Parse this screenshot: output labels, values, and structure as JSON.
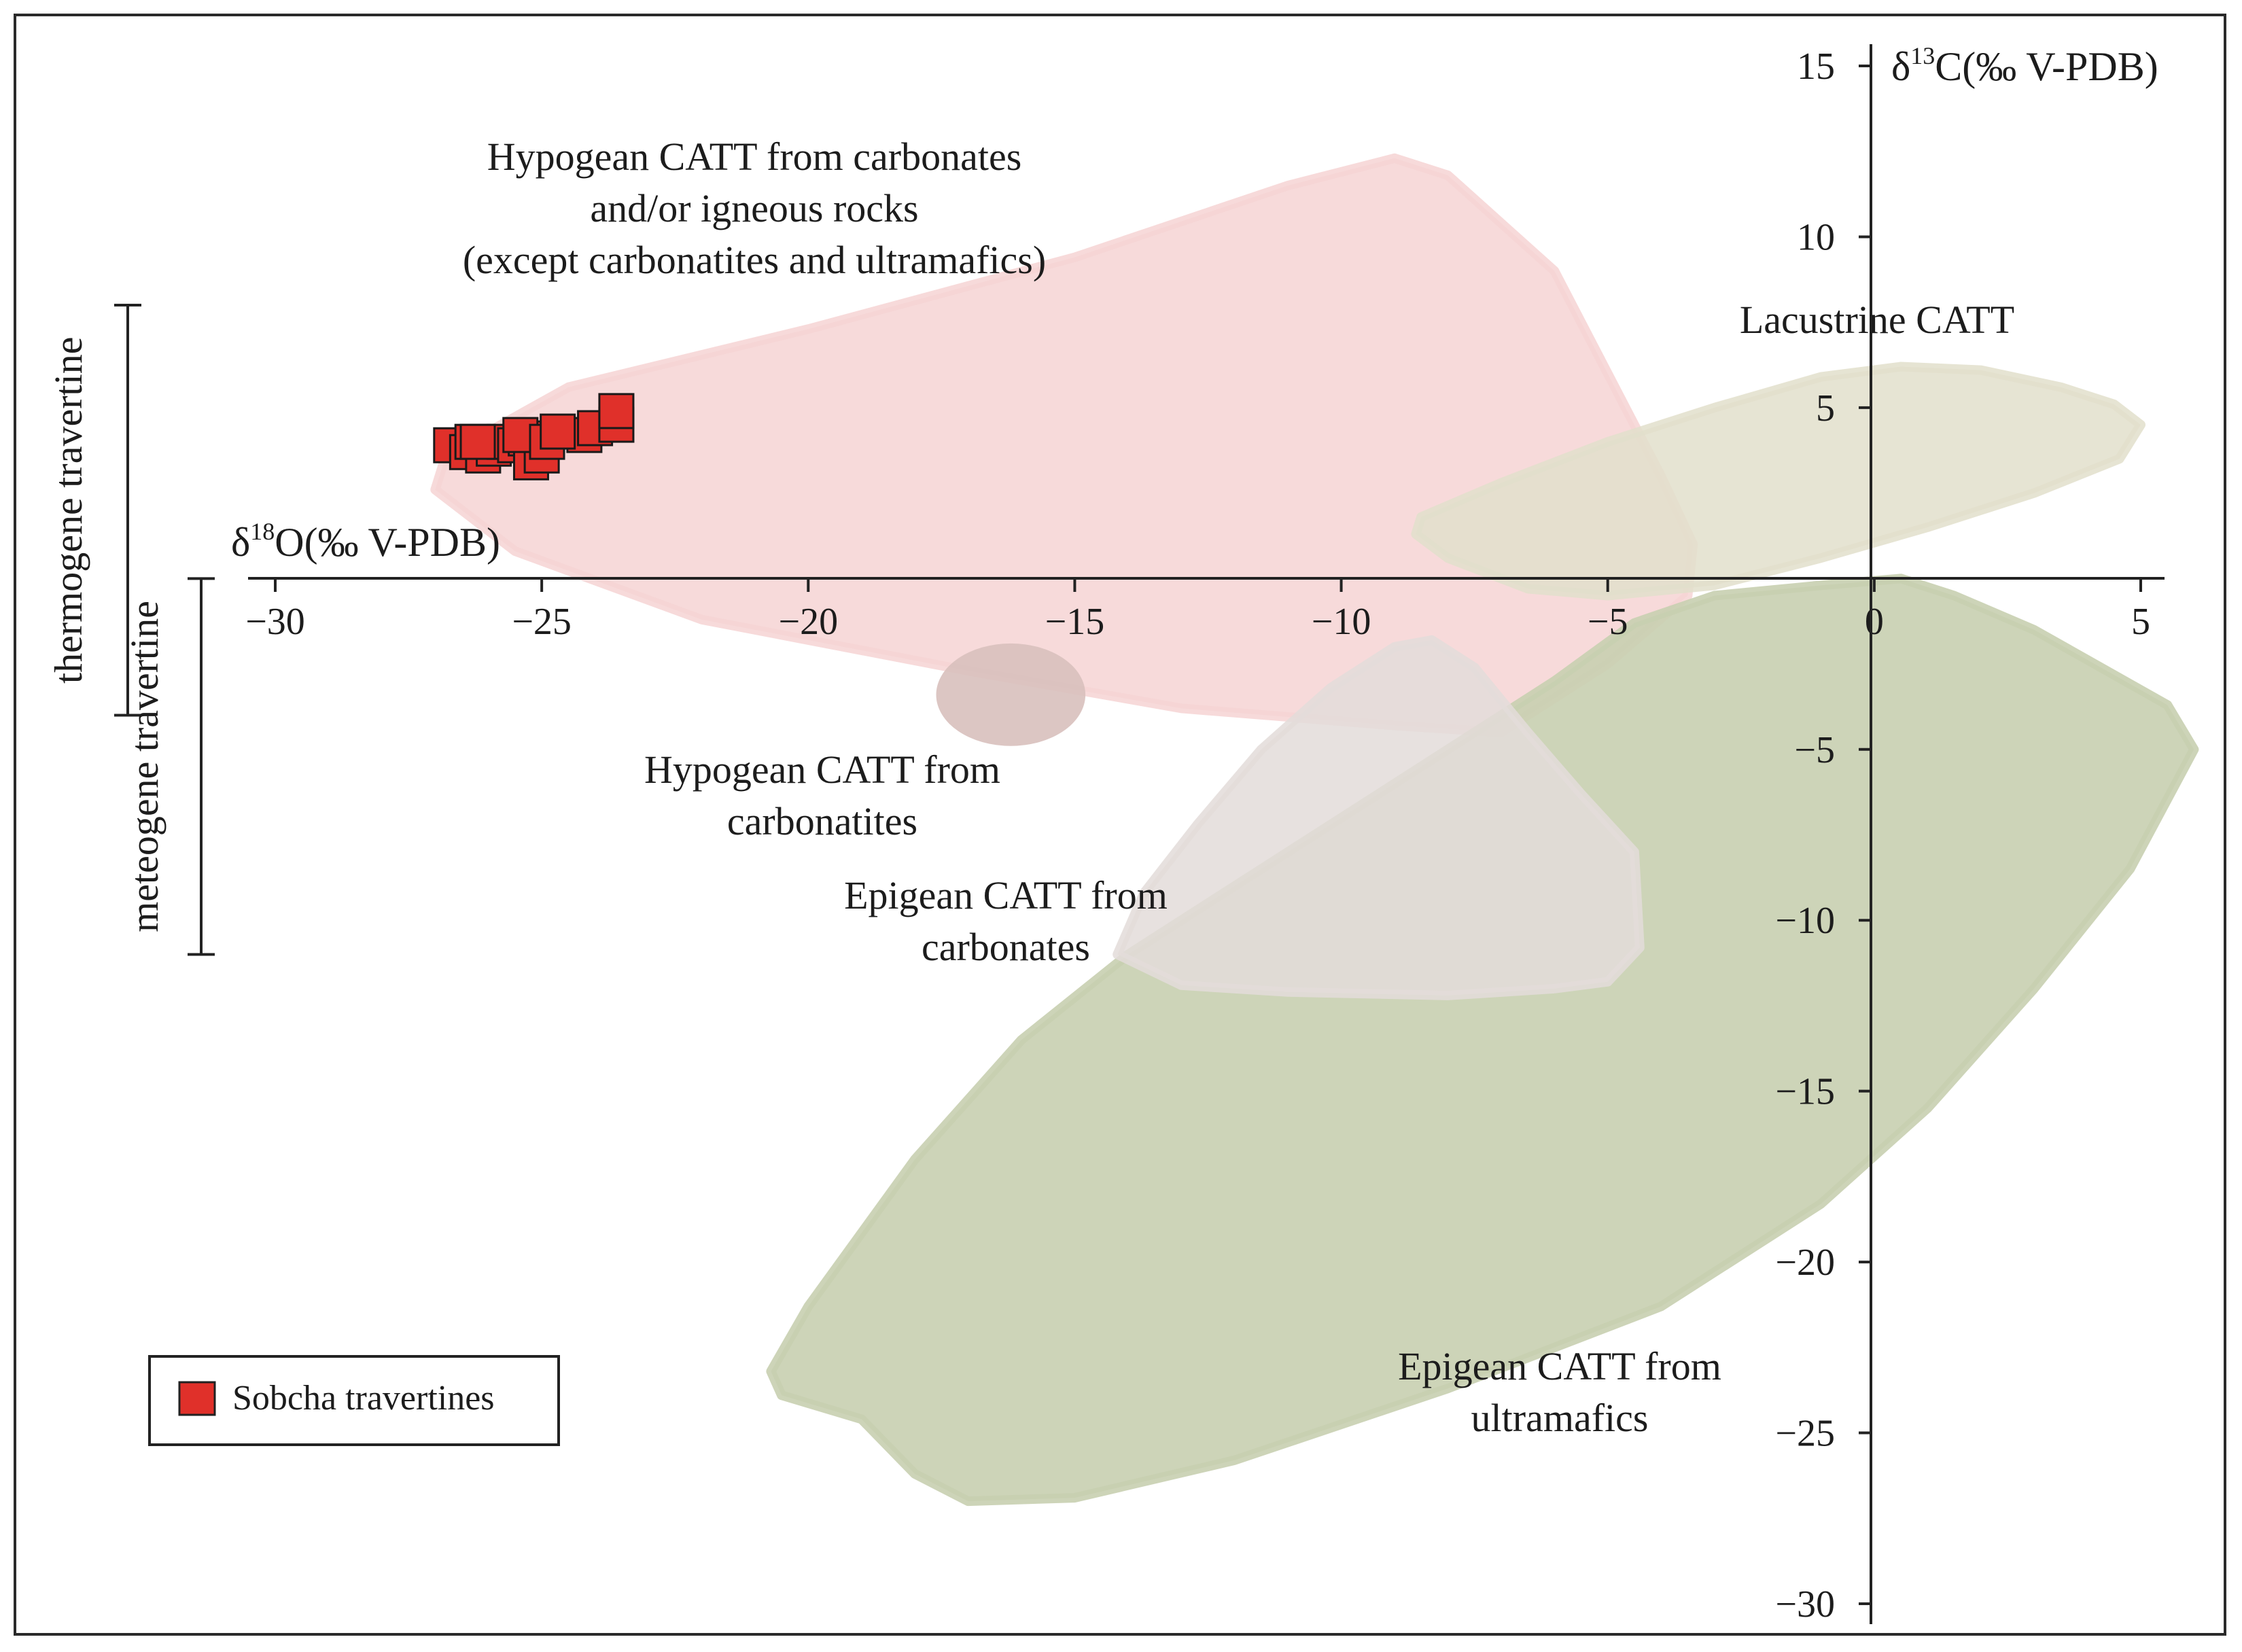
{
  "chart_data": {
    "type": "scatter",
    "title": "",
    "xlabel": {
      "prefix": "δ",
      "sup": "18",
      "rest": "O(‰ V-PDB)"
    },
    "ylabel": {
      "prefix": "δ",
      "sup": "13",
      "rest": "C(‰ V-PDB)"
    },
    "xlim": [
      -30,
      5
    ],
    "ylim": [
      -30,
      15
    ],
    "xticks": [
      -30,
      -25,
      -20,
      -15,
      -10,
      -5,
      0,
      5
    ],
    "xtick_labels": [
      "−30",
      "−25",
      "−20",
      "−15",
      "−10",
      "−5",
      "0",
      "5"
    ],
    "yticks": [
      15,
      10,
      5,
      -5,
      -10,
      -15,
      -20,
      -25,
      -30
    ],
    "ytick_labels": [
      "15",
      "10",
      "5",
      "−5",
      "−10",
      "−15",
      "−20",
      "−25",
      "−30"
    ],
    "legend": {
      "position": "bottom-left",
      "entries": [
        {
          "label": "Sobcha travertines",
          "color": "#e0302a"
        }
      ]
    },
    "series": [
      {
        "name": "Sobcha travertines",
        "marker": "square",
        "color": "#e0302a",
        "points": [
          [
            -26.7,
            3.9
          ],
          [
            -26.4,
            3.7
          ],
          [
            -26.3,
            4.0
          ],
          [
            -26.1,
            3.6
          ],
          [
            -25.9,
            3.8
          ],
          [
            -25.7,
            4.0
          ],
          [
            -25.5,
            3.9
          ],
          [
            -25.3,
            4.1
          ],
          [
            -25.2,
            3.4
          ],
          [
            -25.0,
            3.6
          ],
          [
            -25.4,
            4.2
          ],
          [
            -24.9,
            4.0
          ],
          [
            -24.2,
            4.2
          ],
          [
            -24.0,
            4.4
          ],
          [
            -23.6,
            4.5
          ],
          [
            -23.6,
            4.9
          ],
          [
            -26.2,
            4.0
          ],
          [
            -24.7,
            4.3
          ]
        ]
      }
    ],
    "regions": [
      {
        "name": "hypogean-carbonates-igneous",
        "label_lines": [
          "Hypogean CATT from carbonates",
          "and/or igneous rocks",
          "(except carbonatites and ultramafics)"
        ],
        "fill": "#f6d3d4",
        "opacity": 0.85,
        "polygon": [
          [
            -26.8,
            3.6
          ],
          [
            -24.5,
            5.6
          ],
          [
            -20,
            7.3
          ],
          [
            -15,
            9.4
          ],
          [
            -11,
            11.5
          ],
          [
            -9,
            12.3
          ],
          [
            -8,
            11.8
          ],
          [
            -6,
            9.0
          ],
          [
            -5,
            6.0
          ],
          [
            -4,
            3.0
          ],
          [
            -3.4,
            1.0
          ],
          [
            -3.5,
            -0.5
          ],
          [
            -5,
            -2.5
          ],
          [
            -7,
            -4.5
          ],
          [
            -9,
            -4.3
          ],
          [
            -13,
            -3.8
          ],
          [
            -17,
            -2.7
          ],
          [
            -22,
            -1.2
          ],
          [
            -25.5,
            0.8
          ],
          [
            -27,
            2.6
          ]
        ]
      },
      {
        "name": "lacustrine",
        "label_lines": [
          "Lacustrine CATT"
        ],
        "fill": "#e2dfcb",
        "opacity": 0.85,
        "polygon": [
          [
            -8.5,
            1.8
          ],
          [
            -7,
            2.8
          ],
          [
            -5,
            4.0
          ],
          [
            -3,
            5.0
          ],
          [
            -1,
            5.9
          ],
          [
            0.5,
            6.2
          ],
          [
            2,
            6.1
          ],
          [
            3.5,
            5.6
          ],
          [
            4.5,
            5.1
          ],
          [
            5,
            4.5
          ],
          [
            4.6,
            3.5
          ],
          [
            3,
            2.5
          ],
          [
            1,
            1.5
          ],
          [
            -1,
            0.6
          ],
          [
            -3,
            -0.2
          ],
          [
            -5,
            -0.5
          ],
          [
            -6.5,
            -0.3
          ],
          [
            -8,
            0.6
          ],
          [
            -8.6,
            1.3
          ]
        ]
      },
      {
        "name": "hypogean-carbonatites",
        "label_lines": [
          "Hypogean CATT from",
          "carbonatites"
        ],
        "fill": "#d8c0bd",
        "opacity": 0.9,
        "ellipse": {
          "cx": -16.2,
          "cy": -3.4,
          "rx": 1.4,
          "ry": 1.5
        }
      },
      {
        "name": "epigean-ultramafics",
        "label_lines": [
          "Epigean CATT from",
          "ultramafics"
        ],
        "fill": "#c8cfb0",
        "opacity": 0.9,
        "polygon": [
          [
            -20.5,
            -23.9
          ],
          [
            -19,
            -24.6
          ],
          [
            -18,
            -26.2
          ],
          [
            -17,
            -27
          ],
          [
            -15,
            -26.9
          ],
          [
            -12,
            -25.8
          ],
          [
            -8,
            -23.7
          ],
          [
            -4,
            -21.3
          ],
          [
            -1,
            -18.3
          ],
          [
            1,
            -15.5
          ],
          [
            3,
            -12
          ],
          [
            4.8,
            -8.5
          ],
          [
            6,
            -5
          ],
          [
            5.5,
            -3.7
          ],
          [
            3,
            -1.5
          ],
          [
            1.5,
            -0.5
          ],
          [
            0.5,
            0
          ],
          [
            -1,
            -0.2
          ],
          [
            -3,
            -0.5
          ],
          [
            -4.5,
            -1.3
          ],
          [
            -6,
            -3
          ],
          [
            -8,
            -5
          ],
          [
            -10,
            -7
          ],
          [
            -12,
            -9
          ],
          [
            -14,
            -11
          ],
          [
            -16,
            -13.5
          ],
          [
            -18,
            -17
          ],
          [
            -20,
            -21.3
          ],
          [
            -20.7,
            -23.2
          ]
        ]
      },
      {
        "name": "epigean-carbonates",
        "label_lines": [
          "Epigean CATT from",
          "carbonates"
        ],
        "fill": "#e3dcd9",
        "opacity": 0.85,
        "polygon": [
          [
            -14.2,
            -11
          ],
          [
            -13,
            -11.9
          ],
          [
            -11,
            -12.1
          ],
          [
            -8,
            -12.2
          ],
          [
            -6,
            -12.0
          ],
          [
            -5,
            -11.8
          ],
          [
            -4.4,
            -10.8
          ],
          [
            -4.5,
            -8.0
          ],
          [
            -5.5,
            -6.3
          ],
          [
            -6.5,
            -4.5
          ],
          [
            -7.5,
            -2.6
          ],
          [
            -8.3,
            -1.8
          ],
          [
            -9,
            -2.0
          ],
          [
            -10.2,
            -3.2
          ],
          [
            -11.5,
            -5.0
          ],
          [
            -12.7,
            -7.2
          ],
          [
            -13.7,
            -9.2
          ]
        ]
      }
    ],
    "side_brackets": [
      {
        "label": "thermogene travertine",
        "y_range": [
          -4,
          8
        ]
      },
      {
        "label": "meteogene travertine",
        "y_range": [
          -11,
          0
        ]
      }
    ]
  }
}
